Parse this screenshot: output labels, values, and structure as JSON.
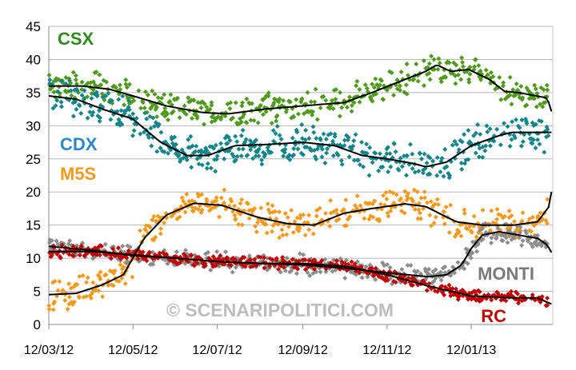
{
  "chart_data": {
    "type": "scatter",
    "x_tick_labels": [
      "12/03/12",
      "12/05/12",
      "12/07/12",
      "12/09/12",
      "12/11/12",
      "12/01/13"
    ],
    "x_tick_dates": [
      "2012-03-12",
      "2012-05-12",
      "2012-07-12",
      "2012-09-12",
      "2012-11-12",
      "2013-01-12"
    ],
    "xlim": [
      "2012-03-12",
      "2013-03-12"
    ],
    "ylim": [
      0,
      45
    ],
    "y_ticks": [
      "0",
      "5",
      "10",
      "15",
      "20",
      "25",
      "30",
      "35",
      "40",
      "45"
    ],
    "grid": "horizontal",
    "watermark": "© SCENARIPOLITICI.COM",
    "series": [
      {
        "name": "CSX",
        "color": "#4f9a1d",
        "label_color": "#2e8b1e",
        "spread": 2.6,
        "trend": [
          [
            "2012-03-12",
            36
          ],
          [
            "2012-04-05",
            36
          ],
          [
            "2012-04-25",
            35.5
          ],
          [
            "2012-05-12",
            34.5
          ],
          [
            "2012-06-05",
            33
          ],
          [
            "2012-07-01",
            32
          ],
          [
            "2012-07-20",
            31.8
          ],
          [
            "2012-08-15",
            32.5
          ],
          [
            "2012-09-12",
            33
          ],
          [
            "2012-10-12",
            33.5
          ],
          [
            "2012-11-01",
            35
          ],
          [
            "2012-11-25",
            37
          ],
          [
            "2012-12-10",
            38.2
          ],
          [
            "2012-12-18",
            39.2
          ],
          [
            "2012-12-28",
            38.2
          ],
          [
            "2013-01-10",
            38.5
          ],
          [
            "2013-01-25",
            37
          ],
          [
            "2013-02-05",
            35.2
          ],
          [
            "2013-02-15",
            35
          ],
          [
            "2013-02-28",
            34.5
          ],
          [
            "2013-03-08",
            34.2
          ],
          [
            "2013-03-12",
            31.5
          ]
        ]
      },
      {
        "name": "CDX",
        "color": "#13858a",
        "label_color": "#2f86c8",
        "spread": 3.2,
        "trend": [
          [
            "2012-03-12",
            34.5
          ],
          [
            "2012-04-01",
            34
          ],
          [
            "2012-04-20",
            32.5
          ],
          [
            "2012-05-12",
            31
          ],
          [
            "2012-06-01",
            27.5
          ],
          [
            "2012-06-20",
            25.5
          ],
          [
            "2012-07-05",
            25.5
          ],
          [
            "2012-07-25",
            27
          ],
          [
            "2012-08-20",
            27.2
          ],
          [
            "2012-09-12",
            27.5
          ],
          [
            "2012-10-05",
            27
          ],
          [
            "2012-10-25",
            25.5
          ],
          [
            "2012-11-12",
            25
          ],
          [
            "2012-12-01",
            24.3
          ],
          [
            "2012-12-10",
            23.8
          ],
          [
            "2012-12-25",
            24.5
          ],
          [
            "2013-01-12",
            27
          ],
          [
            "2013-02-01",
            28.5
          ],
          [
            "2013-02-10",
            29
          ],
          [
            "2013-03-01",
            29
          ],
          [
            "2013-03-12",
            29
          ]
        ]
      },
      {
        "name": "M5S",
        "color": "#f39a1e",
        "label_color": "#f39a1e",
        "spread": 2.8,
        "trend": [
          [
            "2012-03-12",
            4.5
          ],
          [
            "2012-04-01",
            4.7
          ],
          [
            "2012-04-20",
            6
          ],
          [
            "2012-05-05",
            7.5
          ],
          [
            "2012-05-20",
            13
          ],
          [
            "2012-06-05",
            16.5
          ],
          [
            "2012-06-25",
            18.3
          ],
          [
            "2012-07-15",
            18
          ],
          [
            "2012-08-10",
            16.2
          ],
          [
            "2012-09-01",
            15.2
          ],
          [
            "2012-09-20",
            15
          ],
          [
            "2012-10-12",
            16.8
          ],
          [
            "2012-11-01",
            17.5
          ],
          [
            "2012-11-25",
            18.2
          ],
          [
            "2012-12-10",
            17.8
          ],
          [
            "2013-01-01",
            15.5
          ],
          [
            "2013-01-20",
            15
          ],
          [
            "2013-02-12",
            15
          ],
          [
            "2013-03-01",
            15.5
          ],
          [
            "2013-03-10",
            18
          ],
          [
            "2013-03-12",
            22
          ]
        ]
      },
      {
        "name": "MONTI",
        "color": "#8c8c8c",
        "label_color": "#7a7a7a",
        "spread": 1.7,
        "trend": [
          [
            "2012-03-12",
            11.8
          ],
          [
            "2012-04-12",
            11.2
          ],
          [
            "2012-05-12",
            10.4
          ],
          [
            "2012-06-12",
            10
          ],
          [
            "2012-07-12",
            9.5
          ],
          [
            "2012-08-12",
            9.2
          ],
          [
            "2012-09-12",
            9
          ],
          [
            "2012-10-12",
            8.5
          ],
          [
            "2012-11-12",
            7.8
          ],
          [
            "2012-12-12",
            7.2
          ],
          [
            "2012-12-25",
            7.5
          ],
          [
            "2013-01-05",
            9
          ],
          [
            "2013-01-12",
            11.5
          ],
          [
            "2013-01-20",
            13.5
          ],
          [
            "2013-02-01",
            14
          ],
          [
            "2013-02-15",
            13.5
          ],
          [
            "2013-03-01",
            13
          ],
          [
            "2013-03-08",
            12
          ],
          [
            "2013-03-12",
            10.5
          ]
        ]
      },
      {
        "name": "RC",
        "color": "#c00000",
        "label_color": "#c00000",
        "spread": 1.1,
        "trend": [
          [
            "2012-03-12",
            11
          ],
          [
            "2012-04-12",
            11
          ],
          [
            "2012-05-12",
            10.5
          ],
          [
            "2012-06-12",
            10
          ],
          [
            "2012-07-12",
            9.5
          ],
          [
            "2012-08-12",
            9.2
          ],
          [
            "2012-09-12",
            9.2
          ],
          [
            "2012-10-12",
            8.8
          ],
          [
            "2012-11-12",
            7.5
          ],
          [
            "2012-12-12",
            5.8
          ],
          [
            "2013-01-12",
            4.3
          ],
          [
            "2013-02-12",
            4
          ],
          [
            "2013-03-01",
            4
          ],
          [
            "2013-03-12",
            3
          ]
        ]
      }
    ]
  }
}
